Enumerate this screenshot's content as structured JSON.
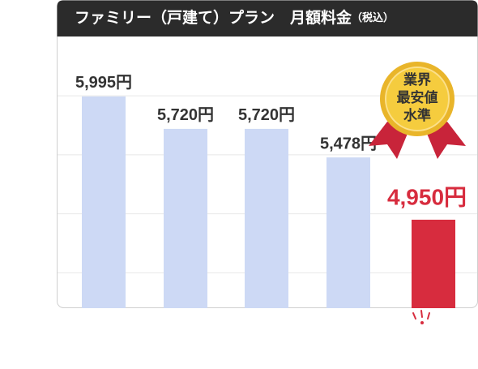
{
  "chart_data": {
    "type": "bar",
    "title": "ファミリー（戸建て）プラン　月額料金",
    "subtitle": "（税込）",
    "categories": [
      null,
      null,
      null,
      null,
      null
    ],
    "values": [
      5995,
      5720,
      5720,
      5478,
      4950
    ],
    "value_labels": [
      "5,995円",
      "5,720円",
      "5,720円",
      "5,478円",
      "4,950円"
    ],
    "colors": [
      "#cdd9f5",
      "#cdd9f5",
      "#cdd9f5",
      "#cdd9f5",
      "#d72c3e"
    ],
    "ylim": [
      4200,
      6400
    ],
    "yticks": [
      4500,
      5000,
      5500,
      6000
    ],
    "grid": true,
    "annotation": [
      "業界",
      "最安値",
      "水準"
    ]
  }
}
